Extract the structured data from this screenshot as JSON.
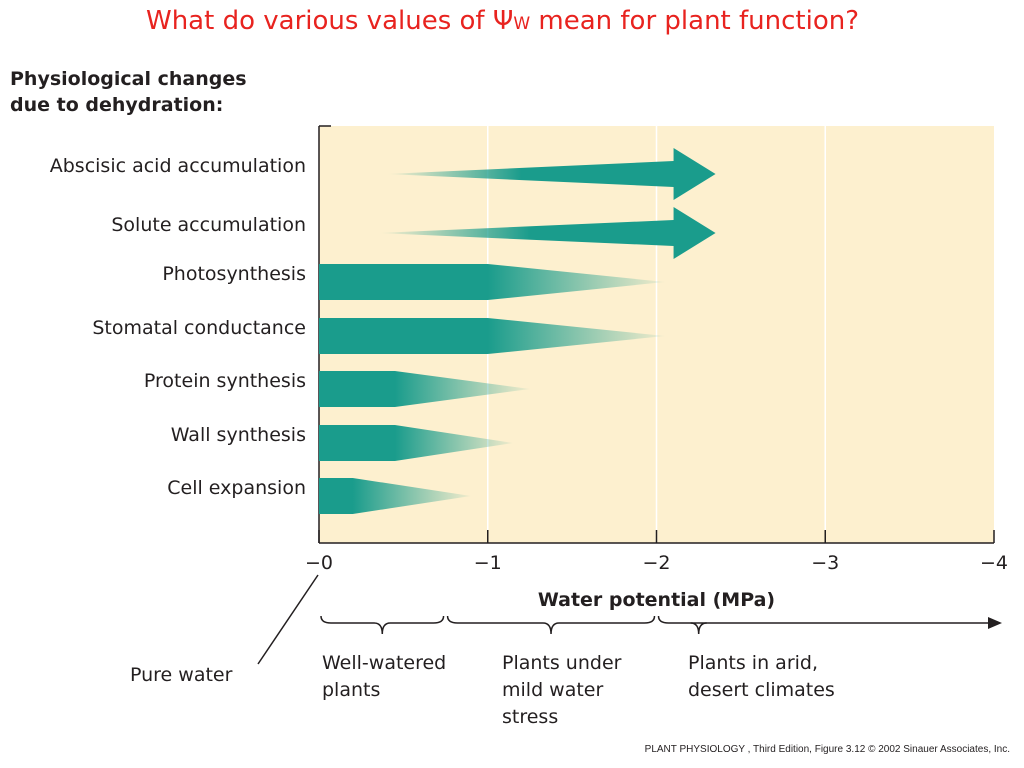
{
  "slide": {
    "title_before": "What do various values of ",
    "title_symbol": "Ψ",
    "title_subscript": "W",
    "title_after": " mean for plant function?"
  },
  "heading_line1": "Physiological changes",
  "heading_line2": "due to dehydration:",
  "chart_data": {
    "type": "bar",
    "xlabel": "Water potential (MPa)",
    "xlim": [
      0,
      -4
    ],
    "x_ticks": [
      {
        "value": 0,
        "label": "−0"
      },
      {
        "value": -1,
        "label": "−1"
      },
      {
        "value": -2,
        "label": "−2"
      },
      {
        "value": -3,
        "label": "−3"
      },
      {
        "value": -4,
        "label": "−4"
      }
    ],
    "grid": "vertical",
    "background_color": "#fdf0cf",
    "bar_color": "#1a9c8c",
    "categories": [
      {
        "label": "Abscisic acid accumulation",
        "direction": "increase",
        "fade_start": -0.4,
        "solid_from": -1.2,
        "end": -2.35
      },
      {
        "label": "Solute accumulation",
        "direction": "increase",
        "fade_start": -0.35,
        "solid_from": -1.25,
        "end": -2.35
      },
      {
        "label": "Photosynthesis",
        "direction": "decrease",
        "start": 0,
        "full_until": -1.0,
        "end": -2.05
      },
      {
        "label": "Stomatal conductance",
        "direction": "decrease",
        "start": 0,
        "full_until": -1.0,
        "end": -2.05
      },
      {
        "label": "Protein synthesis",
        "direction": "decrease",
        "start": 0,
        "full_until": -0.45,
        "end": -1.25
      },
      {
        "label": "Wall synthesis",
        "direction": "decrease",
        "start": 0,
        "full_until": -0.45,
        "end": -1.15
      },
      {
        "label": "Cell expansion",
        "direction": "decrease",
        "start": 0,
        "full_until": -0.2,
        "end": -0.9
      }
    ],
    "ranges": [
      {
        "from": 0,
        "to": -0.75,
        "lines": [
          "Well-watered",
          "plants"
        ]
      },
      {
        "from": -0.75,
        "to": -2.0,
        "lines": [
          "Plants under",
          "mild water",
          "stress"
        ]
      },
      {
        "from": -2.0,
        "to": -4.0,
        "lines": [
          "Plants in arid,",
          "desert climates"
        ]
      }
    ],
    "annotation": "Pure water"
  },
  "credit": "PLANT PHYSIOLOGY , Third Edition, Figure 3.12  © 2002 Sinauer Associates, Inc."
}
